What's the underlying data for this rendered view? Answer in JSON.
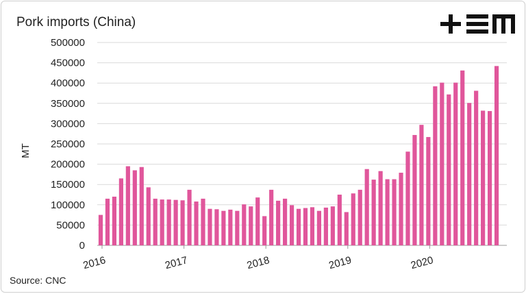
{
  "brand": {
    "logo_text": "+EM"
  },
  "chart_data": {
    "type": "bar",
    "title": "Pork imports (China)",
    "xlabel": "",
    "ylabel": "MT",
    "source": "Source: CNC",
    "color": "#e0569b",
    "ylim": [
      0,
      500000
    ],
    "yticks": [
      0,
      50000,
      100000,
      150000,
      200000,
      250000,
      300000,
      350000,
      400000,
      450000,
      500000
    ],
    "xtick_labels": [
      "2016",
      "2017",
      "2018",
      "2019",
      "2020"
    ],
    "grid": true,
    "categories": [
      "2016-01",
      "2016-02",
      "2016-03",
      "2016-04",
      "2016-05",
      "2016-06",
      "2016-07",
      "2016-08",
      "2016-09",
      "2016-10",
      "2016-11",
      "2016-12",
      "2017-01",
      "2017-02",
      "2017-03",
      "2017-04",
      "2017-05",
      "2017-06",
      "2017-07",
      "2017-08",
      "2017-09",
      "2017-10",
      "2017-11",
      "2017-12",
      "2018-01",
      "2018-02",
      "2018-03",
      "2018-04",
      "2018-05",
      "2018-06",
      "2018-07",
      "2018-08",
      "2018-09",
      "2018-10",
      "2018-11",
      "2018-12",
      "2019-01",
      "2019-02",
      "2019-03",
      "2019-04",
      "2019-05",
      "2019-06",
      "2019-07",
      "2019-08",
      "2019-09",
      "2019-10",
      "2019-11",
      "2019-12",
      "2020-01",
      "2020-02",
      "2020-03",
      "2020-04",
      "2020-05",
      "2020-06",
      "2020-07",
      "2020-08",
      "2020-09",
      "2020-10",
      "2020-11",
      "2020-12"
    ],
    "values": [
      75000,
      115000,
      120000,
      165000,
      195000,
      185000,
      193000,
      143000,
      115000,
      113000,
      113000,
      112000,
      111000,
      137000,
      108000,
      115000,
      90000,
      89000,
      85000,
      88000,
      85000,
      101000,
      96000,
      118000,
      72000,
      137000,
      110000,
      115000,
      99000,
      90000,
      92000,
      94000,
      85000,
      93000,
      96000,
      125000,
      82000,
      128000,
      137000,
      188000,
      162000,
      183000,
      163000,
      163000,
      179000,
      231000,
      272000,
      297000,
      267000,
      392000,
      401000,
      372000,
      401000,
      431000,
      351000,
      381000,
      332000,
      331000,
      442000,
      0
    ]
  }
}
